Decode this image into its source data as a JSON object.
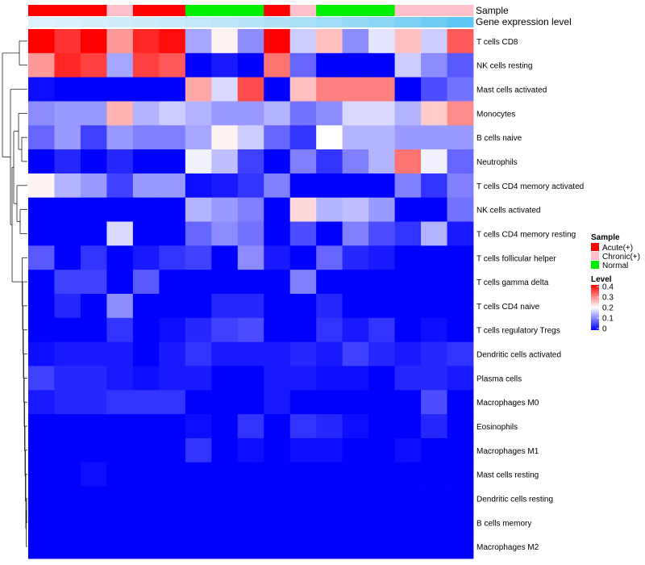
{
  "chart_data": {
    "type": "heatmap",
    "annotation_tracks": [
      {
        "name": "Sample",
        "values": [
          "Acute(+)",
          "Acute(+)",
          "Acute(+)",
          "Chronic(+)",
          "Acute(+)",
          "Acute(+)",
          "Normal",
          "Normal",
          "Normal",
          "Acute(+)",
          "Chronic(+)",
          "Normal",
          "Normal",
          "Normal",
          "Chronic(+)",
          "Chronic(+)",
          "Chronic(+)"
        ]
      },
      {
        "name": "Gene expression level",
        "values": [
          0.06,
          0.09,
          0.12,
          0.15,
          0.18,
          0.21,
          0.25,
          0.29,
          0.33,
          0.37,
          0.42,
          0.48,
          0.55,
          0.63,
          0.72,
          0.82,
          0.94
        ]
      }
    ],
    "rows": [
      "T cells CD8",
      "NK cells resting",
      "Mast cells activated",
      "Monocytes",
      "B cells naive",
      "Neutrophils",
      "T cells CD4 memory activated",
      "NK cells activated",
      "T cells CD4 memory resting",
      "T cells follicular helper",
      "T cells gamma delta",
      "T cells CD4 naive",
      "T cells regulatory  Tregs",
      "Dendritic cells activated",
      "Plasma cells",
      "Macrophages M0",
      "Eosinophils",
      "Macrophages M1",
      "Mast cells resting",
      "Dendritic cells resting",
      "B cells memory",
      "Macrophages M2"
    ],
    "values": [
      [
        0.4,
        0.36,
        0.4,
        0.28,
        0.37,
        0.39,
        0.13,
        0.21,
        0.11,
        0.4,
        0.16,
        0.25,
        0.11,
        0.18,
        0.25,
        0.16,
        0.33
      ],
      [
        0.28,
        0.37,
        0.35,
        0.13,
        0.35,
        0.33,
        0.0,
        0.02,
        0.0,
        0.31,
        0.08,
        0.0,
        0.0,
        0.0,
        0.16,
        0.11,
        0.07
      ],
      [
        0.01,
        0.0,
        0.0,
        0.0,
        0.0,
        0.0,
        0.27,
        0.17,
        0.34,
        0.0,
        0.25,
        0.3,
        0.3,
        0.3,
        0.0,
        0.06,
        0.09
      ],
      [
        0.11,
        0.12,
        0.12,
        0.26,
        0.14,
        0.16,
        0.14,
        0.12,
        0.12,
        0.14,
        0.09,
        0.11,
        0.17,
        0.17,
        0.14,
        0.24,
        0.29
      ],
      [
        0.08,
        0.12,
        0.05,
        0.12,
        0.1,
        0.1,
        0.13,
        0.21,
        0.16,
        0.08,
        0.04,
        0.2,
        0.14,
        0.14,
        0.12,
        0.12,
        0.12
      ],
      [
        0.0,
        0.03,
        0.0,
        0.03,
        0.0,
        0.0,
        0.19,
        0.15,
        0.05,
        0.0,
        0.1,
        0.04,
        0.1,
        0.14,
        0.31,
        0.19,
        0.08
      ],
      [
        0.21,
        0.14,
        0.12,
        0.05,
        0.12,
        0.12,
        0.01,
        0.02,
        0.04,
        0.1,
        0.0,
        0.0,
        0.0,
        0.0,
        0.1,
        0.04,
        0.1
      ],
      [
        0.0,
        0.0,
        0.0,
        0.0,
        0.0,
        0.0,
        0.14,
        0.12,
        0.1,
        0.0,
        0.23,
        0.14,
        0.15,
        0.12,
        0.0,
        0.0,
        0.09
      ],
      [
        0.0,
        0.0,
        0.0,
        0.17,
        0.0,
        0.0,
        0.08,
        0.11,
        0.09,
        0.0,
        0.06,
        0.0,
        0.1,
        0.06,
        0.04,
        0.14,
        0.02
      ],
      [
        0.07,
        0.0,
        0.04,
        0.0,
        0.02,
        0.04,
        0.05,
        0.0,
        0.11,
        0.02,
        0.0,
        0.08,
        0.03,
        0.02,
        0.0,
        0.0,
        0.0
      ],
      [
        0.0,
        0.05,
        0.05,
        0.0,
        0.07,
        0.0,
        0.0,
        0.0,
        0.0,
        0.0,
        0.1,
        0.0,
        0.0,
        0.0,
        0.0,
        0.0,
        0.0
      ],
      [
        0.0,
        0.03,
        0.0,
        0.11,
        0.0,
        0.0,
        0.0,
        0.03,
        0.03,
        0.0,
        0.0,
        0.03,
        0.0,
        0.0,
        0.0,
        0.0,
        0.0
      ],
      [
        0.0,
        0.0,
        0.0,
        0.04,
        0.0,
        0.01,
        0.03,
        0.05,
        0.06,
        0.0,
        0.0,
        0.04,
        0.02,
        0.04,
        0.0,
        0.01,
        0.0
      ],
      [
        0.01,
        0.02,
        0.02,
        0.02,
        0.0,
        0.02,
        0.04,
        0.02,
        0.02,
        0.02,
        0.03,
        0.02,
        0.05,
        0.03,
        0.02,
        0.03,
        0.04
      ],
      [
        0.05,
        0.03,
        0.03,
        0.02,
        0.01,
        0.02,
        0.02,
        0.0,
        0.0,
        0.02,
        0.02,
        0.01,
        0.01,
        0.0,
        0.03,
        0.03,
        0.02
      ],
      [
        0.02,
        0.03,
        0.03,
        0.04,
        0.04,
        0.04,
        0.0,
        0.0,
        0.0,
        0.02,
        0.0,
        0.0,
        0.0,
        0.0,
        0.0,
        0.06,
        0.0
      ],
      [
        0.0,
        0.0,
        0.0,
        0.0,
        0.0,
        0.0,
        0.01,
        0.0,
        0.04,
        0.0,
        0.04,
        0.03,
        0.01,
        0.0,
        0.0,
        0.03,
        0.0
      ],
      [
        0.0,
        0.0,
        0.0,
        0.0,
        0.0,
        0.0,
        0.04,
        0.0,
        0.01,
        0.0,
        0.01,
        0.01,
        0.0,
        0.0,
        0.01,
        0.0,
        0.0
      ],
      [
        0.0,
        0.0,
        0.01,
        0.0,
        0.0,
        0.0,
        0.0,
        0.0,
        0.0,
        0.0,
        0.0,
        0.0,
        0.0,
        0.0,
        0.0,
        0.0,
        0.0
      ],
      [
        0.0,
        0.0,
        0.0,
        0.0,
        0.0,
        0.0,
        0.0,
        0.0,
        0.0,
        0.0,
        0.0,
        0.0,
        0.0,
        0.0,
        0.0,
        0.0,
        0.0
      ],
      [
        0.0,
        0.0,
        0.0,
        0.0,
        0.0,
        0.0,
        0.0,
        0.0,
        0.0,
        0.0,
        0.0,
        0.0,
        0.0,
        0.0,
        0.0,
        0.0,
        0.0
      ],
      [
        0.0,
        0.0,
        0.0,
        0.0,
        0.0,
        0.0,
        0.0,
        0.0,
        0.0,
        0.0,
        0.0,
        0.0,
        0.0,
        0.0,
        0.0,
        0.0,
        0.0
      ]
    ],
    "color_scale": {
      "low": "#0000ff",
      "mid": "#ffffff",
      "high": "#ff0000",
      "min": 0,
      "mid_value": 0.2,
      "max": 0.4
    },
    "dendrogram": "rows",
    "legend": {
      "placement": "right",
      "sample": {
        "title": "Sample",
        "items": [
          {
            "label": "Acute(+)",
            "color": "#ff0000"
          },
          {
            "label": "Chronic(+)",
            "color": "#ffc0cb"
          },
          {
            "label": "Normal",
            "color": "#00ee00"
          }
        ]
      },
      "level": {
        "title": "Level",
        "ticks": [
          "0.4",
          "0.3",
          "0.2",
          "0.1",
          "0"
        ]
      }
    },
    "annotation_colors": {
      "gene_low": "#e8f4fb",
      "gene_high": "#55c4f2"
    }
  }
}
